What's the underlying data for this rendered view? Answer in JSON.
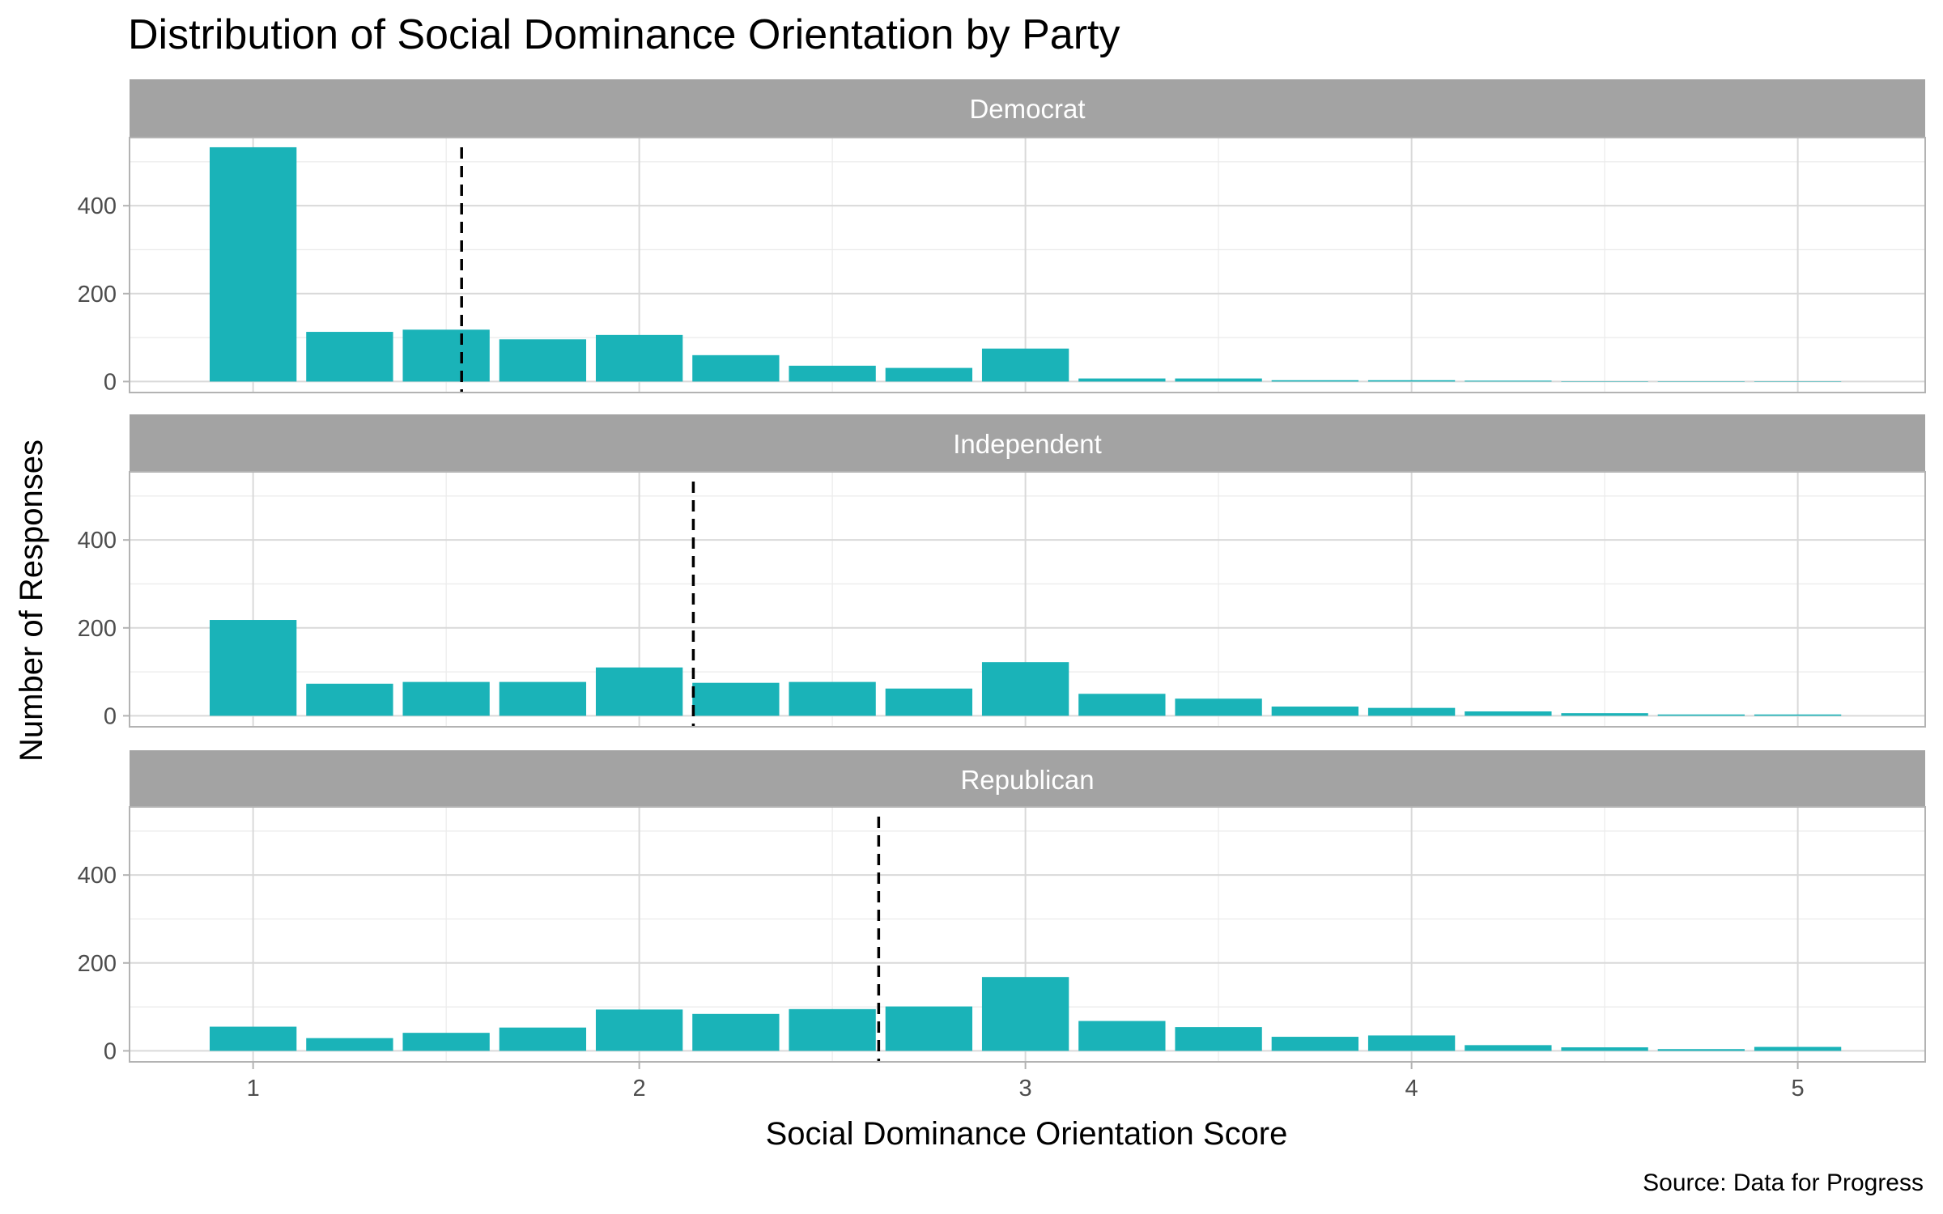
{
  "chart_data": {
    "type": "bar",
    "title": "Distribution of Social Dominance Orientation by Party",
    "xlabel": "Social Dominance Orientation Score",
    "ylabel": "Number of Responses",
    "caption": "Source: Data for Progress",
    "x": [
      1.0,
      1.25,
      1.5,
      1.75,
      2.0,
      2.25,
      2.5,
      2.75,
      3.0,
      3.25,
      3.5,
      3.75,
      4.0,
      4.25,
      4.5,
      4.75,
      5.0
    ],
    "xlim": [
      0.68,
      5.33
    ],
    "ylim": [
      -25,
      555
    ],
    "x_ticks": [
      1,
      2,
      3,
      4,
      5
    ],
    "y_ticks": [
      0,
      200,
      400
    ],
    "bar_color": "#1ab3b8",
    "strip_color": "#a3a3a3",
    "mean_line_style": "dashed",
    "grid": true,
    "facets": [
      {
        "label": "Democrat",
        "values": [
          533,
          113,
          118,
          96,
          106,
          60,
          36,
          31,
          75,
          7,
          7,
          3,
          3,
          2,
          0,
          0,
          0
        ],
        "mean": 1.54
      },
      {
        "label": "Independent",
        "values": [
          218,
          73,
          77,
          77,
          110,
          75,
          77,
          62,
          122,
          50,
          39,
          21,
          18,
          10,
          6,
          3,
          3
        ],
        "mean": 2.14
      },
      {
        "label": "Republican",
        "values": [
          55,
          29,
          41,
          53,
          94,
          84,
          95,
          101,
          168,
          68,
          54,
          32,
          35,
          13,
          8,
          4,
          9
        ],
        "mean": 2.62
      }
    ]
  }
}
